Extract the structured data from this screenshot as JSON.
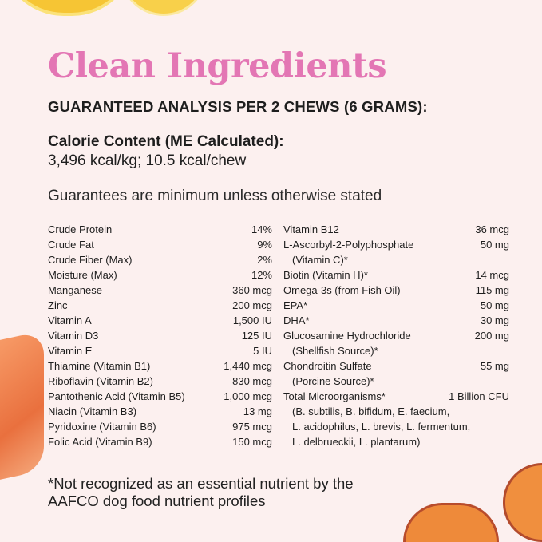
{
  "title": "Clean Ingredients",
  "subtitle": "GUARANTEED ANALYSIS PER 2 CHEWS (6 GRAMS):",
  "calorie_label": "Calorie Content (ME Calculated):",
  "calorie_value": "3,496 kcal/kg; 10.5 kcal/chew",
  "guarantee_note": "Guarantees are minimum unless otherwise stated",
  "left": [
    {
      "name": "Crude Protein",
      "value": "14%"
    },
    {
      "name": "Crude Fat",
      "value": "9%"
    },
    {
      "name": "Crude Fiber (Max)",
      "value": "2%"
    },
    {
      "name": "Moisture (Max)",
      "value": "12%"
    },
    {
      "name": "Manganese",
      "value": "360 mcg"
    },
    {
      "name": "Zinc",
      "value": "200 mcg"
    },
    {
      "name": "Vitamin A",
      "value": "1,500 IU"
    },
    {
      "name": "Vitamin D3",
      "value": "125 IU"
    },
    {
      "name": "Vitamin E",
      "value": "5 IU"
    },
    {
      "name": "Thiamine (Vitamin B1)",
      "value": "1,440 mcg"
    },
    {
      "name": "Riboflavin (Vitamin B2)",
      "value": "830 mcg"
    },
    {
      "name": "Pantothenic Acid (Vitamin B5)",
      "value": "1,000 mcg"
    },
    {
      "name": "Niacin (Vitamin B3)",
      "value": "13 mg"
    },
    {
      "name": "Pyridoxine (Vitamin B6)",
      "value": "975 mcg"
    },
    {
      "name": "Folic Acid (Vitamin B9)",
      "value": "150 mcg"
    }
  ],
  "right": [
    {
      "name": "Vitamin B12",
      "value": "36 mcg",
      "sub": []
    },
    {
      "name": "L-Ascorbyl-2-Polyphosphate",
      "value": "50 mg",
      "sub": [
        "(Vitamin C)*"
      ]
    },
    {
      "name": "Biotin (Vitamin H)*",
      "value": "14 mcg",
      "sub": []
    },
    {
      "name": "Omega-3s (from Fish Oil)",
      "value": "115 mg",
      "sub": []
    },
    {
      "name": "EPA*",
      "value": "50 mg",
      "sub": []
    },
    {
      "name": "DHA*",
      "value": "30 mg",
      "sub": []
    },
    {
      "name": "Glucosamine Hydrochloride",
      "value": "200 mg",
      "sub": [
        "(Shellfish Source)*"
      ]
    },
    {
      "name": "Chondroitin Sulfate",
      "value": "55 mg",
      "sub": [
        "(Porcine Source)*"
      ]
    },
    {
      "name": "Total Microorganisms*",
      "value": "1 Billion CFU",
      "sub": [
        "(B. subtilis, B. bifidum, E. faecium,",
        "L. acidophilus, L. brevis, L. fermentum,",
        "L. delbrueckii, L. plantarum)"
      ]
    }
  ],
  "footnote_line1": "*Not recognized as an essential nutrient by the",
  "footnote_line2": "AAFCO dog food nutrient profiles",
  "colors": {
    "title": "#e376b4",
    "background": "#fcf0ef"
  }
}
